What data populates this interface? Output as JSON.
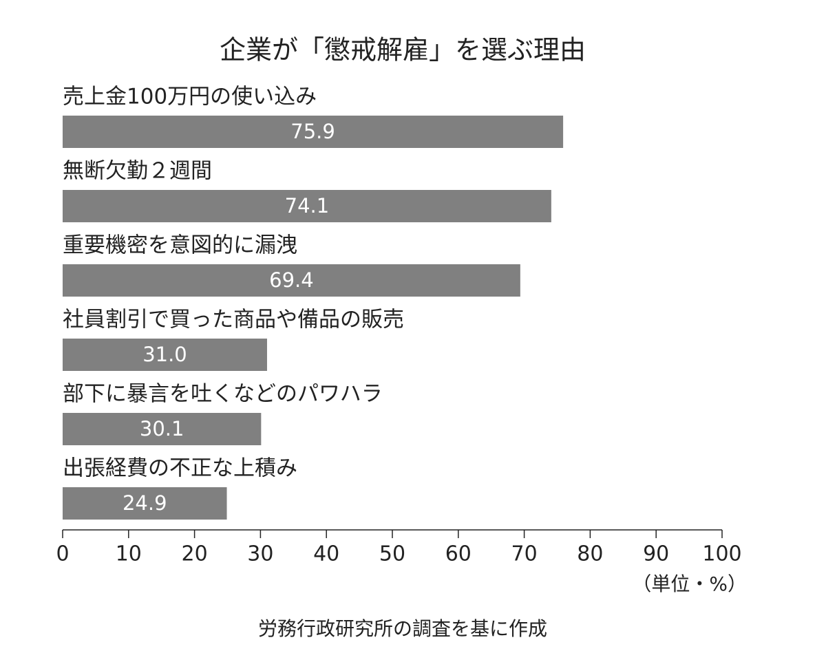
{
  "chart_data": {
    "type": "bar",
    "orientation": "horizontal",
    "title": "企業が「懲戒解雇」を選ぶ理由",
    "categories": [
      "売上金100万円の使い込み",
      "無断欠勤２週間",
      "重要機密を意図的に漏洩",
      "社員割引で買った商品や備品の販売",
      "部下に暴言を吐くなどのパワハラ",
      "出張経費の不正な上積み"
    ],
    "values": [
      75.9,
      74.1,
      69.4,
      31.0,
      30.1,
      24.9
    ],
    "value_labels": [
      "75.9",
      "74.1",
      "69.4",
      "31.0",
      "30.1",
      "24.9"
    ],
    "color": "#808080",
    "xlim": [
      0,
      100
    ],
    "xticks": [
      0,
      10,
      20,
      30,
      40,
      50,
      60,
      70,
      80,
      90,
      100
    ],
    "unit_label": "（単位・%）",
    "source": "労務行政研究所の調査を基に作成"
  }
}
